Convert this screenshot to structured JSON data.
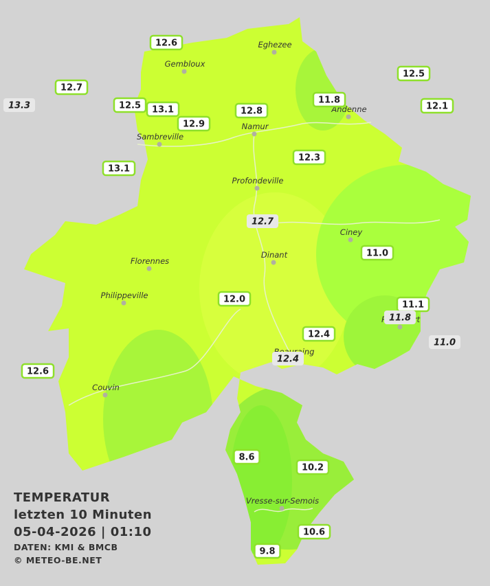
{
  "towns": [
    {
      "name": "Eghezee"
    },
    {
      "name": "Gembloux"
    },
    {
      "name": "Andenne"
    },
    {
      "name": "Namur"
    },
    {
      "name": "Sambreville"
    },
    {
      "name": "Profondeville"
    },
    {
      "name": "Ciney"
    },
    {
      "name": "Dinant"
    },
    {
      "name": "Florennes"
    },
    {
      "name": "Philippeville"
    },
    {
      "name": "Rochefort"
    },
    {
      "name": "Beauraing"
    },
    {
      "name": "Couvin"
    },
    {
      "name": "Vresse-sur-Semois"
    }
  ],
  "stations": [
    {
      "value": "12.6",
      "italic": false
    },
    {
      "value": "12.7",
      "italic": false
    },
    {
      "value": "13.3",
      "italic": true
    },
    {
      "value": "12.5",
      "italic": false
    },
    {
      "value": "13.1",
      "italic": false
    },
    {
      "value": "12.9",
      "italic": false
    },
    {
      "value": "12.8",
      "italic": false
    },
    {
      "value": "11.8",
      "italic": false
    },
    {
      "value": "12.5",
      "italic": false
    },
    {
      "value": "12.1",
      "italic": false
    },
    {
      "value": "12.3",
      "italic": false
    },
    {
      "value": "13.1",
      "italic": false
    },
    {
      "value": "12.7",
      "italic": true
    },
    {
      "value": "11.0",
      "italic": false
    },
    {
      "value": "12.0",
      "italic": false
    },
    {
      "value": "11.1",
      "italic": false
    },
    {
      "value": "11.8",
      "italic": true
    },
    {
      "value": "12.4",
      "italic": false
    },
    {
      "value": "11.0",
      "italic": true
    },
    {
      "value": "12.4",
      "italic": true
    },
    {
      "value": "12.6",
      "italic": false
    },
    {
      "value": "8.6",
      "italic": false
    },
    {
      "value": "10.2",
      "italic": false
    },
    {
      "value": "10.6",
      "italic": false
    },
    {
      "value": "9.8",
      "italic": false
    }
  ],
  "legend": {
    "title": "TEMPERATUR",
    "subtitle": "letzten 10 Minuten",
    "datetime": "05-04-2026  |  01:10",
    "source": "DATEN: KMI & BMCB",
    "copyright": "© METEO-BE.NET"
  }
}
